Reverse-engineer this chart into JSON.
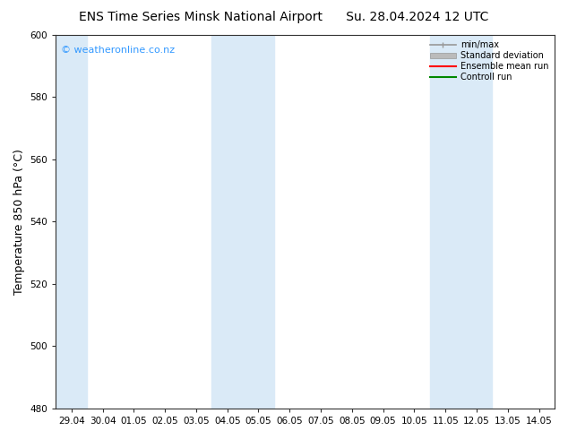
{
  "title_left": "ENS Time Series Minsk National Airport",
  "title_right": "Su. 28.04.2024 12 UTC",
  "ylabel": "Temperature 850 hPa (°C)",
  "ylim": [
    480,
    600
  ],
  "yticks": [
    480,
    500,
    520,
    540,
    560,
    580,
    600
  ],
  "xtick_labels": [
    "29.04",
    "30.04",
    "01.05",
    "02.05",
    "03.05",
    "04.05",
    "05.05",
    "06.05",
    "07.05",
    "08.05",
    "09.05",
    "10.05",
    "11.05",
    "12.05",
    "13.05",
    "14.05"
  ],
  "n_xticks": 16,
  "band_color": "#daeaf7",
  "background_color": "#ffffff",
  "watermark": "© weatheronline.co.nz",
  "watermark_color": "#3399ff",
  "legend_entries": [
    "min/max",
    "Standard deviation",
    "Ensemble mean run",
    "Controll run"
  ],
  "legend_colors_line": [
    "#999999",
    "#bbbbbb",
    "#ff0000",
    "#008800"
  ],
  "title_fontsize": 10,
  "tick_fontsize": 7.5,
  "ylabel_fontsize": 9,
  "band_indices": [
    0,
    5,
    6,
    12,
    13
  ]
}
